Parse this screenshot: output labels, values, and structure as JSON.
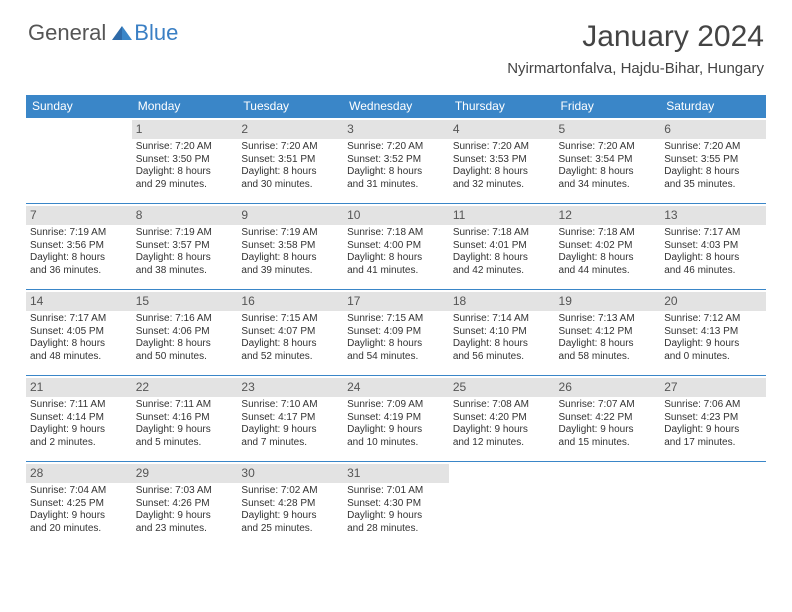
{
  "logo": {
    "general": "General",
    "blue": "Blue"
  },
  "title": "January 2024",
  "location": "Nyirmartonfalva, Hajdu-Bihar, Hungary",
  "colors": {
    "header_bg": "#3a86c8",
    "header_text": "#ffffff",
    "daynum_bg": "#e3e3e3",
    "daynum_text": "#555555",
    "row_border": "#3a86c8",
    "body_text": "#333333",
    "logo_gray": "#555555",
    "logo_blue": "#3a7fc4",
    "background": "#ffffff"
  },
  "typography": {
    "title_fontsize": 30,
    "location_fontsize": 15,
    "dayheader_fontsize": 12,
    "daynum_fontsize": 12,
    "cell_fontsize": 10,
    "logo_fontsize": 22
  },
  "dayHeaders": [
    "Sunday",
    "Monday",
    "Tuesday",
    "Wednesday",
    "Thursday",
    "Friday",
    "Saturday"
  ],
  "weeks": [
    [
      null,
      {
        "n": "1",
        "sr": "Sunrise: 7:20 AM",
        "ss": "Sunset: 3:50 PM",
        "d1": "Daylight: 8 hours",
        "d2": "and 29 minutes."
      },
      {
        "n": "2",
        "sr": "Sunrise: 7:20 AM",
        "ss": "Sunset: 3:51 PM",
        "d1": "Daylight: 8 hours",
        "d2": "and 30 minutes."
      },
      {
        "n": "3",
        "sr": "Sunrise: 7:20 AM",
        "ss": "Sunset: 3:52 PM",
        "d1": "Daylight: 8 hours",
        "d2": "and 31 minutes."
      },
      {
        "n": "4",
        "sr": "Sunrise: 7:20 AM",
        "ss": "Sunset: 3:53 PM",
        "d1": "Daylight: 8 hours",
        "d2": "and 32 minutes."
      },
      {
        "n": "5",
        "sr": "Sunrise: 7:20 AM",
        "ss": "Sunset: 3:54 PM",
        "d1": "Daylight: 8 hours",
        "d2": "and 34 minutes."
      },
      {
        "n": "6",
        "sr": "Sunrise: 7:20 AM",
        "ss": "Sunset: 3:55 PM",
        "d1": "Daylight: 8 hours",
        "d2": "and 35 minutes."
      }
    ],
    [
      {
        "n": "7",
        "sr": "Sunrise: 7:19 AM",
        "ss": "Sunset: 3:56 PM",
        "d1": "Daylight: 8 hours",
        "d2": "and 36 minutes."
      },
      {
        "n": "8",
        "sr": "Sunrise: 7:19 AM",
        "ss": "Sunset: 3:57 PM",
        "d1": "Daylight: 8 hours",
        "d2": "and 38 minutes."
      },
      {
        "n": "9",
        "sr": "Sunrise: 7:19 AM",
        "ss": "Sunset: 3:58 PM",
        "d1": "Daylight: 8 hours",
        "d2": "and 39 minutes."
      },
      {
        "n": "10",
        "sr": "Sunrise: 7:18 AM",
        "ss": "Sunset: 4:00 PM",
        "d1": "Daylight: 8 hours",
        "d2": "and 41 minutes."
      },
      {
        "n": "11",
        "sr": "Sunrise: 7:18 AM",
        "ss": "Sunset: 4:01 PM",
        "d1": "Daylight: 8 hours",
        "d2": "and 42 minutes."
      },
      {
        "n": "12",
        "sr": "Sunrise: 7:18 AM",
        "ss": "Sunset: 4:02 PM",
        "d1": "Daylight: 8 hours",
        "d2": "and 44 minutes."
      },
      {
        "n": "13",
        "sr": "Sunrise: 7:17 AM",
        "ss": "Sunset: 4:03 PM",
        "d1": "Daylight: 8 hours",
        "d2": "and 46 minutes."
      }
    ],
    [
      {
        "n": "14",
        "sr": "Sunrise: 7:17 AM",
        "ss": "Sunset: 4:05 PM",
        "d1": "Daylight: 8 hours",
        "d2": "and 48 minutes."
      },
      {
        "n": "15",
        "sr": "Sunrise: 7:16 AM",
        "ss": "Sunset: 4:06 PM",
        "d1": "Daylight: 8 hours",
        "d2": "and 50 minutes."
      },
      {
        "n": "16",
        "sr": "Sunrise: 7:15 AM",
        "ss": "Sunset: 4:07 PM",
        "d1": "Daylight: 8 hours",
        "d2": "and 52 minutes."
      },
      {
        "n": "17",
        "sr": "Sunrise: 7:15 AM",
        "ss": "Sunset: 4:09 PM",
        "d1": "Daylight: 8 hours",
        "d2": "and 54 minutes."
      },
      {
        "n": "18",
        "sr": "Sunrise: 7:14 AM",
        "ss": "Sunset: 4:10 PM",
        "d1": "Daylight: 8 hours",
        "d2": "and 56 minutes."
      },
      {
        "n": "19",
        "sr": "Sunrise: 7:13 AM",
        "ss": "Sunset: 4:12 PM",
        "d1": "Daylight: 8 hours",
        "d2": "and 58 minutes."
      },
      {
        "n": "20",
        "sr": "Sunrise: 7:12 AM",
        "ss": "Sunset: 4:13 PM",
        "d1": "Daylight: 9 hours",
        "d2": "and 0 minutes."
      }
    ],
    [
      {
        "n": "21",
        "sr": "Sunrise: 7:11 AM",
        "ss": "Sunset: 4:14 PM",
        "d1": "Daylight: 9 hours",
        "d2": "and 2 minutes."
      },
      {
        "n": "22",
        "sr": "Sunrise: 7:11 AM",
        "ss": "Sunset: 4:16 PM",
        "d1": "Daylight: 9 hours",
        "d2": "and 5 minutes."
      },
      {
        "n": "23",
        "sr": "Sunrise: 7:10 AM",
        "ss": "Sunset: 4:17 PM",
        "d1": "Daylight: 9 hours",
        "d2": "and 7 minutes."
      },
      {
        "n": "24",
        "sr": "Sunrise: 7:09 AM",
        "ss": "Sunset: 4:19 PM",
        "d1": "Daylight: 9 hours",
        "d2": "and 10 minutes."
      },
      {
        "n": "25",
        "sr": "Sunrise: 7:08 AM",
        "ss": "Sunset: 4:20 PM",
        "d1": "Daylight: 9 hours",
        "d2": "and 12 minutes."
      },
      {
        "n": "26",
        "sr": "Sunrise: 7:07 AM",
        "ss": "Sunset: 4:22 PM",
        "d1": "Daylight: 9 hours",
        "d2": "and 15 minutes."
      },
      {
        "n": "27",
        "sr": "Sunrise: 7:06 AM",
        "ss": "Sunset: 4:23 PM",
        "d1": "Daylight: 9 hours",
        "d2": "and 17 minutes."
      }
    ],
    [
      {
        "n": "28",
        "sr": "Sunrise: 7:04 AM",
        "ss": "Sunset: 4:25 PM",
        "d1": "Daylight: 9 hours",
        "d2": "and 20 minutes."
      },
      {
        "n": "29",
        "sr": "Sunrise: 7:03 AM",
        "ss": "Sunset: 4:26 PM",
        "d1": "Daylight: 9 hours",
        "d2": "and 23 minutes."
      },
      {
        "n": "30",
        "sr": "Sunrise: 7:02 AM",
        "ss": "Sunset: 4:28 PM",
        "d1": "Daylight: 9 hours",
        "d2": "and 25 minutes."
      },
      {
        "n": "31",
        "sr": "Sunrise: 7:01 AM",
        "ss": "Sunset: 4:30 PM",
        "d1": "Daylight: 9 hours",
        "d2": "and 28 minutes."
      },
      null,
      null,
      null
    ]
  ]
}
